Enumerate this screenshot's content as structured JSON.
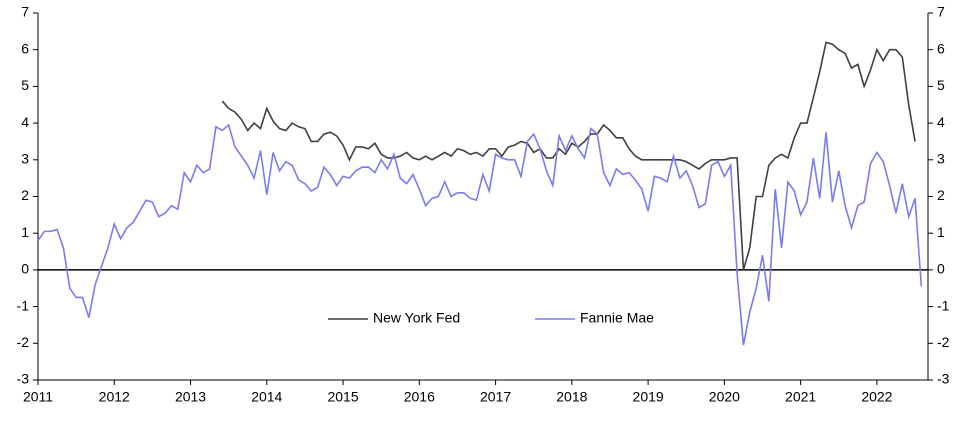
{
  "chart_data": {
    "type": "line",
    "x": [
      2011.0,
      2011.083,
      2011.167,
      2011.25,
      2011.333,
      2011.417,
      2011.5,
      2011.583,
      2011.667,
      2011.75,
      2011.833,
      2011.917,
      2012.0,
      2012.083,
      2012.167,
      2012.25,
      2012.333,
      2012.417,
      2012.5,
      2012.583,
      2012.667,
      2012.75,
      2012.833,
      2012.917,
      2013.0,
      2013.083,
      2013.167,
      2013.25,
      2013.333,
      2013.417,
      2013.5,
      2013.583,
      2013.667,
      2013.75,
      2013.833,
      2013.917,
      2014.0,
      2014.083,
      2014.167,
      2014.25,
      2014.333,
      2014.417,
      2014.5,
      2014.583,
      2014.667,
      2014.75,
      2014.833,
      2014.917,
      2015.0,
      2015.083,
      2015.167,
      2015.25,
      2015.333,
      2015.417,
      2015.5,
      2015.583,
      2015.667,
      2015.75,
      2015.833,
      2015.917,
      2016.0,
      2016.083,
      2016.167,
      2016.25,
      2016.333,
      2016.417,
      2016.5,
      2016.583,
      2016.667,
      2016.75,
      2016.833,
      2016.917,
      2017.0,
      2017.083,
      2017.167,
      2017.25,
      2017.333,
      2017.417,
      2017.5,
      2017.583,
      2017.667,
      2017.75,
      2017.833,
      2017.917,
      2018.0,
      2018.083,
      2018.167,
      2018.25,
      2018.333,
      2018.417,
      2018.5,
      2018.583,
      2018.667,
      2018.75,
      2018.833,
      2018.917,
      2019.0,
      2019.083,
      2019.167,
      2019.25,
      2019.333,
      2019.417,
      2019.5,
      2019.583,
      2019.667,
      2019.75,
      2019.833,
      2019.917,
      2020.0,
      2020.083,
      2020.167,
      2020.25,
      2020.333,
      2020.417,
      2020.5,
      2020.583,
      2020.667,
      2020.75,
      2020.833,
      2020.917,
      2021.0,
      2021.083,
      2021.167,
      2021.25,
      2021.333,
      2021.417,
      2021.5,
      2021.583,
      2021.667,
      2021.75,
      2021.833,
      2021.917,
      2022.0,
      2022.083,
      2022.167,
      2022.25,
      2022.333,
      2022.417,
      2022.5,
      2022.583
    ],
    "series": [
      {
        "name": "New York Fed",
        "color": "#404040",
        "values": [
          null,
          null,
          null,
          null,
          null,
          null,
          null,
          null,
          null,
          null,
          null,
          null,
          null,
          null,
          null,
          null,
          null,
          null,
          null,
          null,
          null,
          null,
          null,
          null,
          null,
          null,
          null,
          null,
          null,
          4.6,
          4.4,
          4.3,
          4.1,
          3.8,
          4.0,
          3.85,
          4.4,
          4.05,
          3.85,
          3.8,
          4.0,
          3.9,
          3.85,
          3.5,
          3.5,
          3.7,
          3.75,
          3.65,
          3.4,
          3.0,
          3.35,
          3.35,
          3.3,
          3.45,
          3.15,
          3.05,
          3.05,
          3.1,
          3.2,
          3.05,
          3.0,
          3.1,
          3.0,
          3.1,
          3.2,
          3.1,
          3.3,
          3.25,
          3.15,
          3.2,
          3.1,
          3.3,
          3.3,
          3.1,
          3.35,
          3.4,
          3.5,
          3.45,
          3.2,
          3.3,
          3.05,
          3.05,
          3.3,
          3.15,
          3.45,
          3.35,
          3.5,
          3.7,
          3.7,
          3.95,
          3.8,
          3.6,
          3.6,
          3.3,
          3.1,
          3.0,
          3.0,
          3.0,
          3.0,
          3.0,
          3.0,
          3.0,
          2.95,
          2.85,
          2.75,
          2.9,
          3.0,
          3.0,
          3.0,
          3.05,
          3.05,
          0.0,
          0.6,
          2.0,
          2.0,
          2.85,
          3.05,
          3.15,
          3.05,
          3.6,
          4.0,
          4.0,
          4.7,
          5.4,
          6.2,
          6.15,
          6.0,
          5.9,
          5.5,
          5.6,
          5.0,
          5.45,
          6.0,
          5.7,
          6.0,
          6.0,
          5.8,
          4.5,
          3.5,
          null
        ]
      },
      {
        "name": "Fannie Mae",
        "color": "#7b7bf0",
        "values": [
          0.8,
          1.05,
          1.05,
          1.1,
          0.6,
          -0.5,
          -0.75,
          -0.75,
          -1.3,
          -0.4,
          0.1,
          0.6,
          1.25,
          0.85,
          1.15,
          1.3,
          1.6,
          1.9,
          1.85,
          1.45,
          1.55,
          1.75,
          1.65,
          2.65,
          2.4,
          2.85,
          2.65,
          2.75,
          3.9,
          3.8,
          3.95,
          3.35,
          3.1,
          2.85,
          2.5,
          3.25,
          2.05,
          3.2,
          2.7,
          2.95,
          2.85,
          2.45,
          2.35,
          2.15,
          2.25,
          2.8,
          2.6,
          2.3,
          2.55,
          2.5,
          2.7,
          2.8,
          2.8,
          2.65,
          3.0,
          2.75,
          3.15,
          2.5,
          2.35,
          2.6,
          2.2,
          1.75,
          1.95,
          2.0,
          2.4,
          2.0,
          2.1,
          2.1,
          1.95,
          1.9,
          2.6,
          2.15,
          3.15,
          3.05,
          3.0,
          3.0,
          2.55,
          3.5,
          3.7,
          3.3,
          2.7,
          2.3,
          3.65,
          3.25,
          3.65,
          3.3,
          3.05,
          3.85,
          3.7,
          2.65,
          2.3,
          2.75,
          2.6,
          2.65,
          2.45,
          2.2,
          1.6,
          2.55,
          2.5,
          2.4,
          3.1,
          2.5,
          2.7,
          2.3,
          1.7,
          1.8,
          2.85,
          2.95,
          2.55,
          2.85,
          -0.1,
          -2.05,
          -1.15,
          -0.5,
          0.4,
          -0.85,
          2.2,
          0.6,
          2.4,
          2.15,
          1.5,
          1.85,
          3.05,
          1.95,
          3.75,
          1.85,
          2.7,
          1.75,
          1.15,
          1.75,
          1.85,
          2.9,
          3.2,
          2.95,
          2.3,
          1.55,
          2.35,
          1.45,
          1.95,
          -0.45
        ]
      }
    ],
    "xlim": [
      2011,
      2022.67
    ],
    "xticks": [
      2011,
      2012,
      2013,
      2014,
      2015,
      2016,
      2017,
      2018,
      2019,
      2020,
      2021,
      2022
    ],
    "ylim": [
      -3,
      7
    ],
    "yticks": [
      -3,
      -2,
      -1,
      0,
      1,
      2,
      3,
      4,
      5,
      6,
      7
    ],
    "y2lim": [
      -3,
      7
    ],
    "y2ticks": [
      -3,
      -2,
      -1,
      0,
      1,
      2,
      3,
      4,
      5,
      6,
      7
    ],
    "grid": false
  }
}
